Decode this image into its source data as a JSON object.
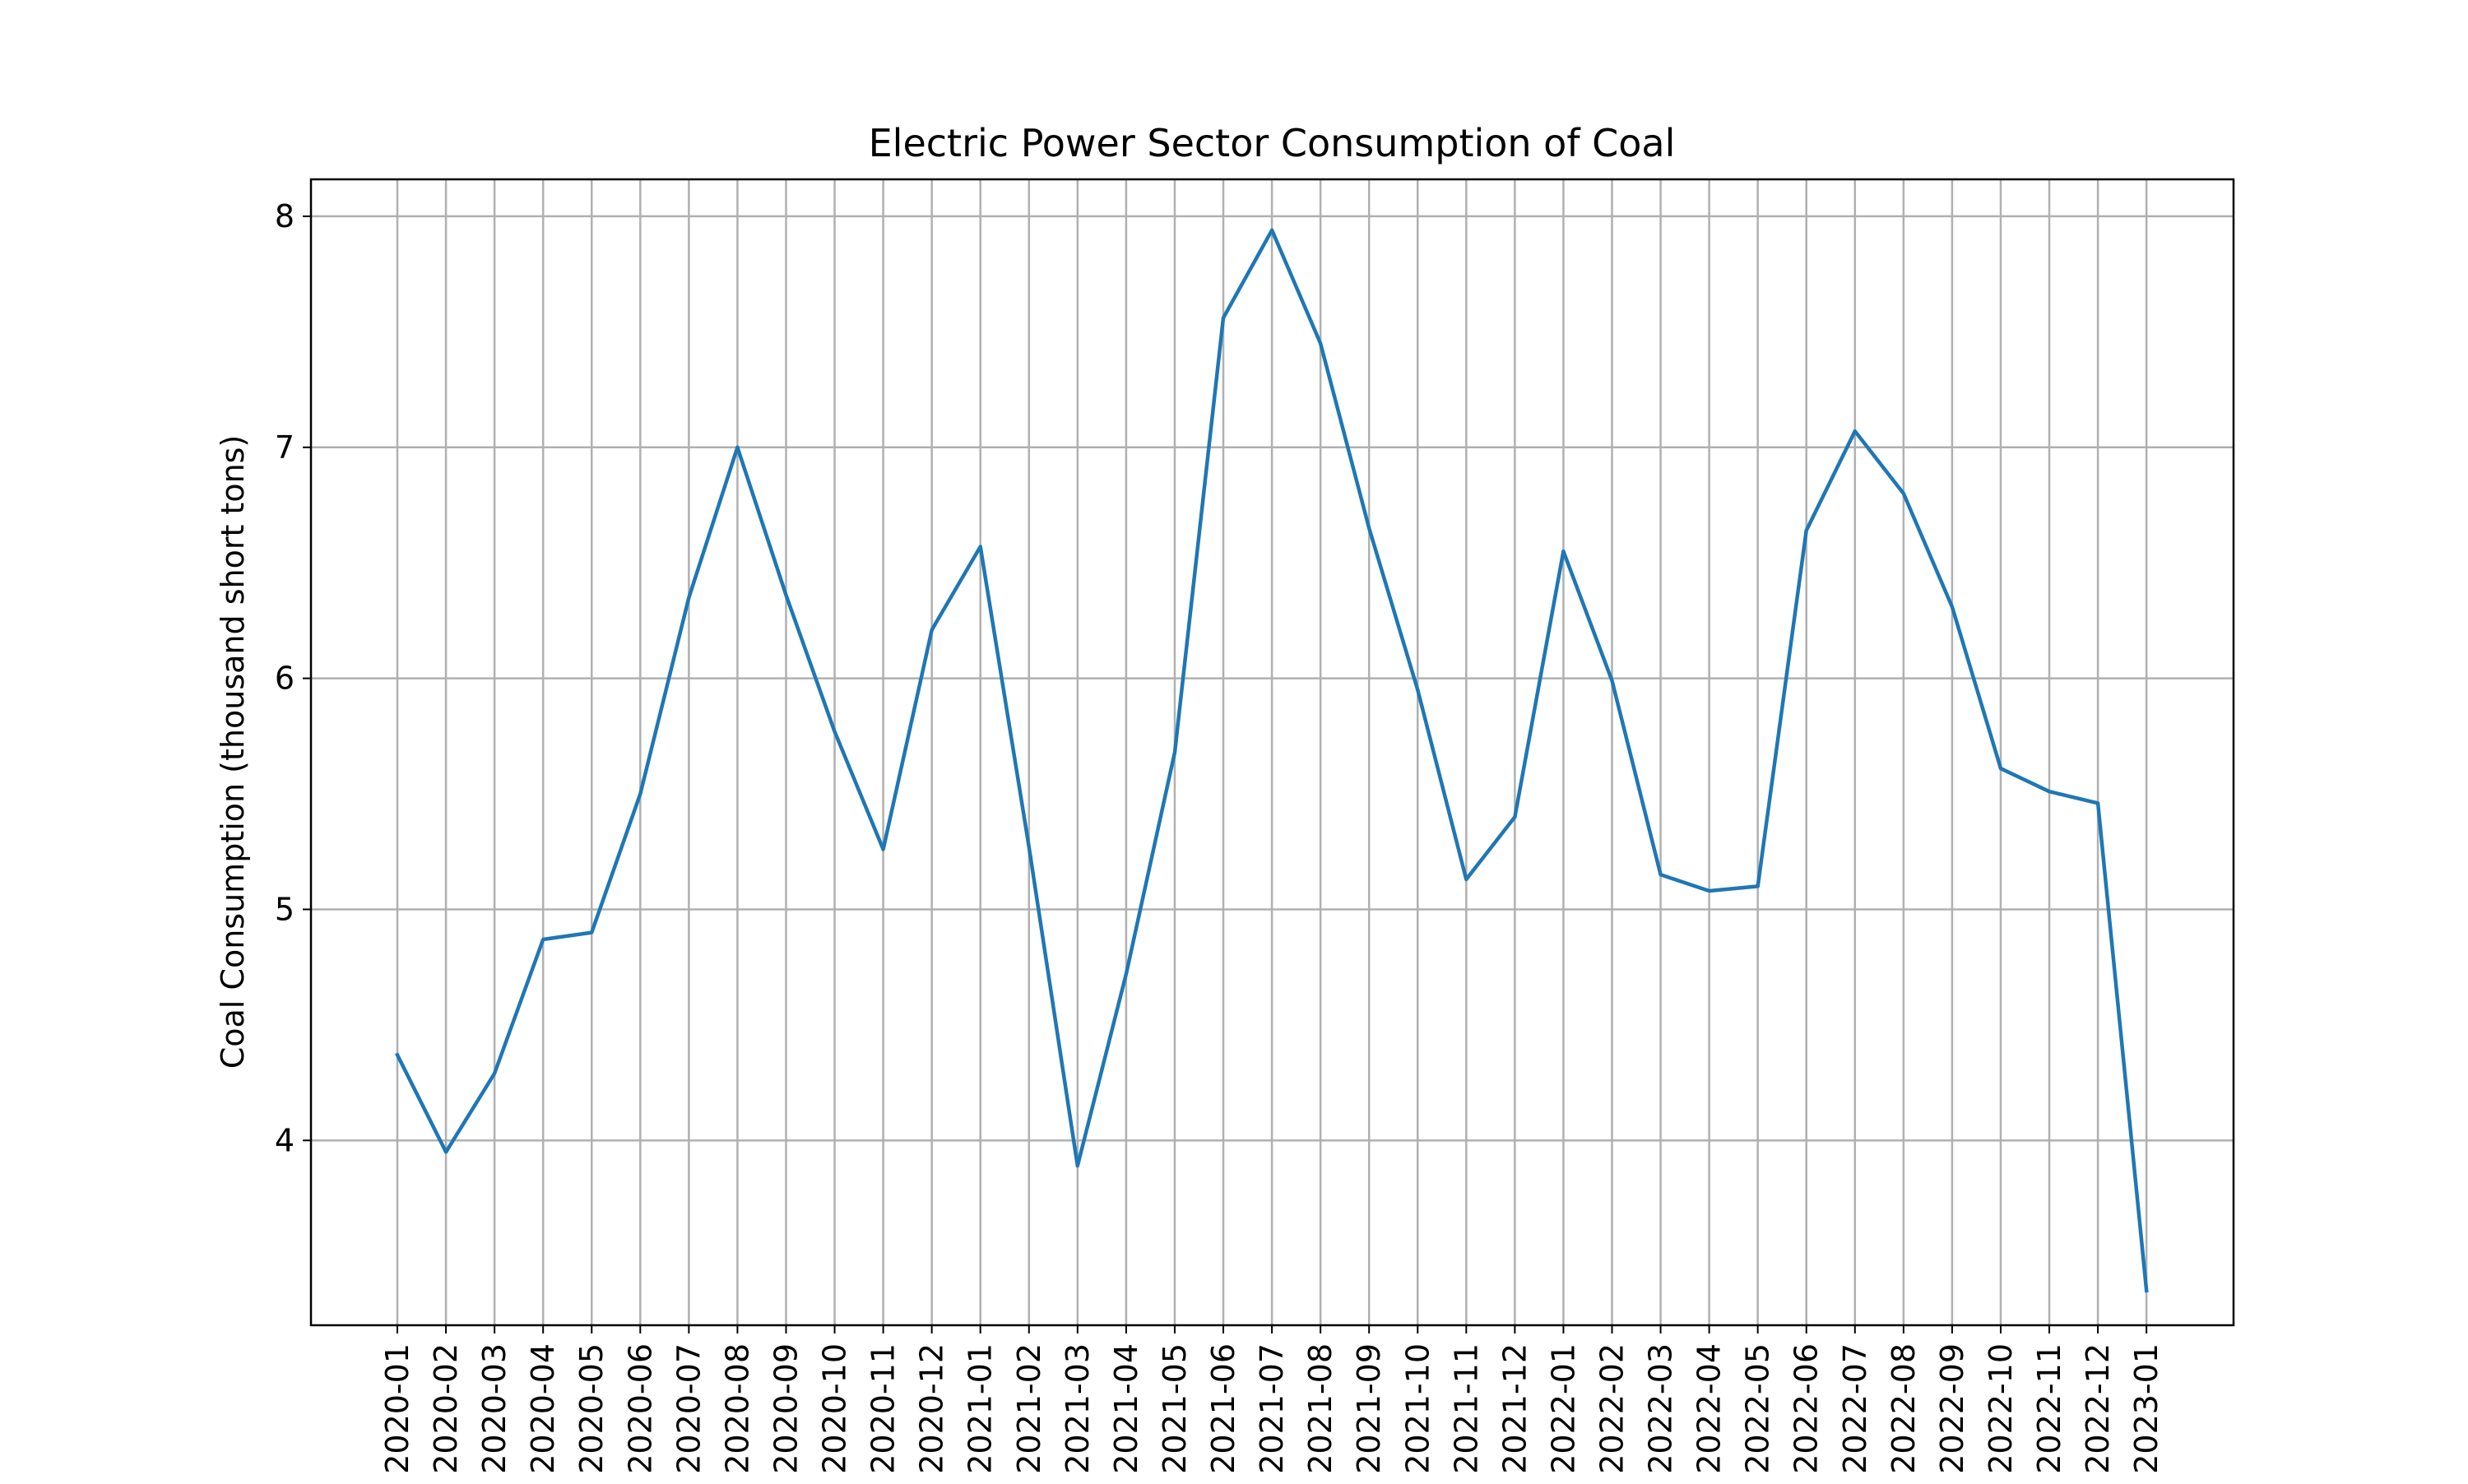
{
  "chart_data": {
    "type": "line",
    "title": "Electric Power Sector Consumption of Coal",
    "xlabel": "",
    "ylabel": "Coal Consumption (thousand short tons)",
    "categories": [
      "2020-01",
      "2020-02",
      "2020-03",
      "2020-04",
      "2020-05",
      "2020-06",
      "2020-07",
      "2020-08",
      "2020-09",
      "2020-10",
      "2020-11",
      "2020-12",
      "2021-01",
      "2021-02",
      "2021-03",
      "2021-04",
      "2021-05",
      "2021-06",
      "2021-07",
      "2021-08",
      "2021-09",
      "2021-10",
      "2021-11",
      "2021-12",
      "2022-01",
      "2022-02",
      "2022-03",
      "2022-04",
      "2022-05",
      "2022-06",
      "2022-07",
      "2022-08",
      "2022-09",
      "2022-10",
      "2022-11",
      "2022-12",
      "2023-01"
    ],
    "series": [
      {
        "color": "#1f77b4",
        "values": [
          4.37,
          3.95,
          4.29,
          4.87,
          4.9,
          5.5,
          6.35,
          7.0,
          6.36,
          5.77,
          5.26,
          6.21,
          6.57,
          5.27,
          3.89,
          4.72,
          5.68,
          7.56,
          7.94,
          7.45,
          6.65,
          5.95,
          5.13,
          5.4,
          6.55,
          5.99,
          5.15,
          5.08,
          5.1,
          6.64,
          7.07,
          6.8,
          6.31,
          5.61,
          5.51,
          5.46,
          3.35
        ]
      }
    ],
    "yticks": [
      4,
      5,
      6,
      7,
      8
    ],
    "ylim": [
      3.2,
      8.16
    ],
    "grid": true,
    "legend": "none"
  }
}
